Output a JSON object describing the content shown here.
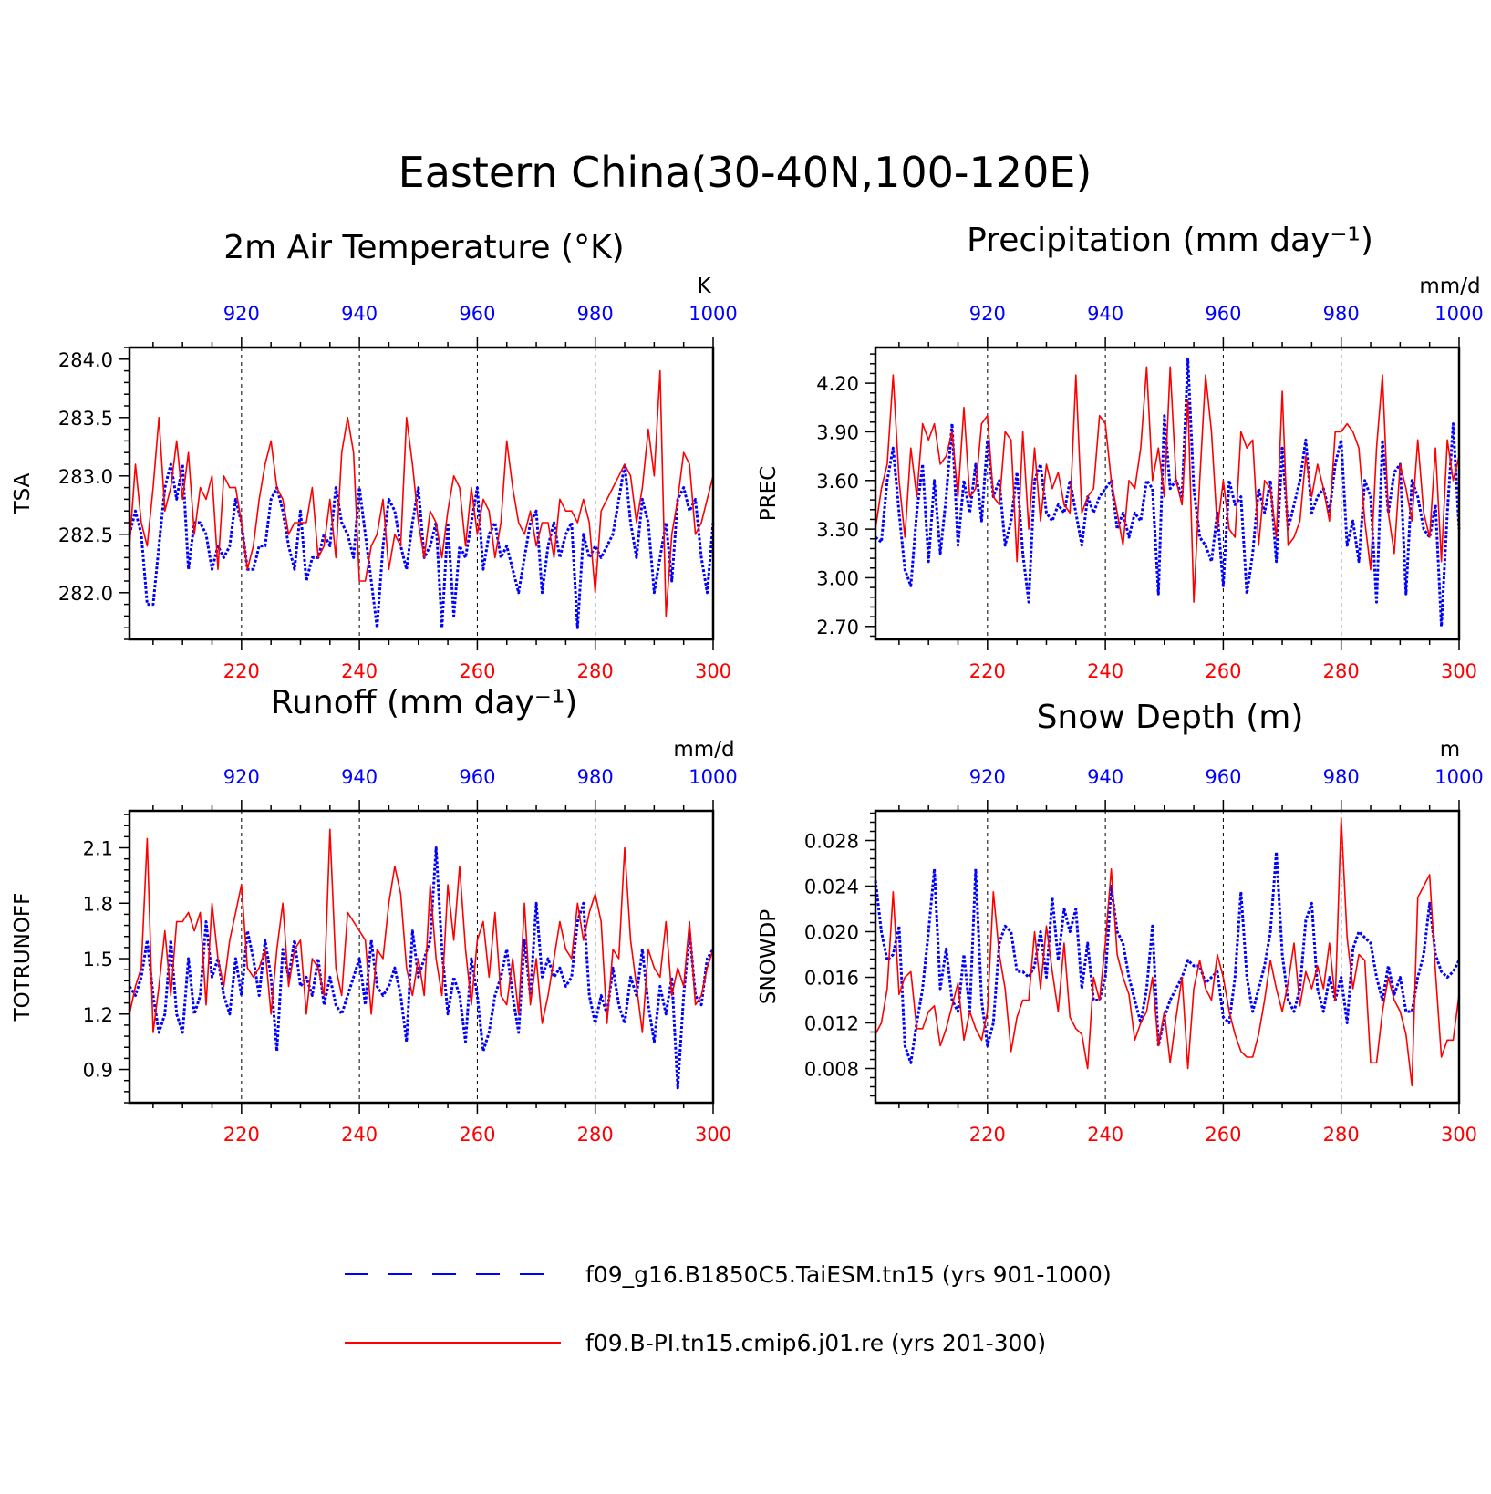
{
  "figure": {
    "title": "Eastern China(30-40N,100-120E)"
  },
  "colors": {
    "model_a": "#0000ff",
    "model_b": "#ff0000",
    "axis": "#000000"
  },
  "legend": {
    "entries": [
      {
        "label": "f09_g16.B1850C5.TaiESM.tn15 (yrs 901-1000)",
        "color": "#0000ff",
        "style": "dashed"
      },
      {
        "label": "f09.B-PI.tn15.cmip6.j01.re (yrs 201-300)",
        "color": "#ff0000",
        "style": "solid"
      }
    ]
  },
  "chart_data": [
    {
      "type": "line",
      "title": "2m Air Temperature (°K)",
      "ylabel": "TSA",
      "units": "K",
      "ylim": [
        281.6,
        284.1
      ],
      "yticks": [
        "282.0",
        "282.5",
        "283.0",
        "283.5",
        "284.0"
      ],
      "xlim_bottom": [
        201,
        300
      ],
      "xticks_bottom": [
        220,
        240,
        260,
        280,
        300
      ],
      "xlim_top": [
        901,
        1000
      ],
      "xticks_top": [
        920,
        940,
        960,
        980,
        1000
      ],
      "gridlines_x": [
        220,
        240,
        260,
        280
      ],
      "series": [
        {
          "key": "model_a",
          "color": "#0000ff",
          "style": "dashed",
          "values": [
            282.5,
            282.7,
            282.5,
            281.9,
            281.9,
            282.4,
            282.9,
            283.1,
            282.8,
            283.1,
            282.2,
            282.6,
            282.6,
            282.5,
            282.2,
            282.4,
            282.3,
            282.4,
            282.8,
            282.6,
            282.2,
            282.2,
            282.4,
            282.4,
            282.8,
            282.9,
            282.7,
            282.4,
            282.2,
            282.7,
            282.1,
            282.3,
            282.3,
            282.5,
            282.4,
            282.9,
            282.6,
            282.5,
            282.3,
            282.9,
            282.5,
            282.1,
            281.7,
            282.4,
            282.8,
            282.7,
            282.4,
            282.2,
            282.6,
            282.9,
            282.3,
            282.4,
            282.6,
            281.7,
            282.6,
            281.8,
            282.4,
            282.3,
            282.6,
            282.9,
            282.2,
            282.5,
            282.6,
            282.3,
            282.4,
            282.2,
            282.0,
            282.3,
            282.6,
            282.7,
            282.0,
            282.4,
            282.6,
            282.3,
            282.5,
            282.6,
            281.7,
            282.5,
            282.3,
            282.4,
            282.3,
            282.4,
            282.5,
            282.8,
            283.1,
            282.6,
            282.3,
            282.8,
            282.6,
            282.0,
            282.3,
            282.6,
            282.1,
            282.8,
            282.9,
            282.7,
            282.8,
            282.3,
            282.0,
            282.6
          ]
        },
        {
          "key": "model_b",
          "color": "#ff0000",
          "style": "solid",
          "values": [
            282.4,
            283.1,
            282.6,
            282.4,
            282.9,
            283.5,
            282.7,
            282.9,
            283.3,
            282.8,
            283.2,
            282.5,
            282.9,
            282.8,
            283.0,
            282.2,
            283.0,
            282.9,
            282.9,
            282.6,
            282.2,
            282.4,
            282.8,
            283.1,
            283.3,
            282.9,
            282.8,
            282.5,
            282.6,
            282.6,
            282.6,
            282.9,
            282.3,
            282.4,
            282.8,
            282.3,
            283.2,
            283.5,
            283.2,
            282.1,
            282.1,
            282.4,
            282.5,
            282.8,
            282.2,
            282.5,
            282.4,
            283.5,
            283.1,
            282.6,
            282.3,
            282.7,
            282.6,
            282.3,
            282.7,
            283.0,
            282.9,
            282.4,
            282.9,
            282.5,
            282.8,
            282.7,
            282.3,
            282.6,
            283.3,
            282.9,
            282.6,
            282.5,
            282.7,
            282.4,
            282.6,
            282.6,
            282.3,
            282.8,
            282.7,
            282.7,
            282.6,
            282.8,
            282.6,
            282.0,
            282.7,
            282.8,
            282.9,
            283.0,
            283.1,
            283.0,
            282.6,
            282.9,
            283.4,
            283.0,
            283.9,
            281.8,
            282.5,
            282.8,
            283.2,
            283.1,
            282.5,
            282.6,
            282.8,
            283.0
          ]
        }
      ]
    },
    {
      "type": "line",
      "title": "Precipitation (mm day⁻¹)",
      "ylabel": "PREC",
      "units": "mm/d",
      "ylim": [
        2.62,
        4.42
      ],
      "yticks": [
        "2.70",
        "3.00",
        "3.30",
        "3.60",
        "3.90",
        "4.20"
      ],
      "xlim_bottom": [
        201,
        300
      ],
      "xticks_bottom": [
        220,
        240,
        260,
        280,
        300
      ],
      "xlim_top": [
        901,
        1000
      ],
      "xticks_top": [
        920,
        940,
        960,
        980,
        1000
      ],
      "gridlines_x": [
        220,
        240,
        260,
        280
      ],
      "series": [
        {
          "key": "model_a",
          "color": "#0000ff",
          "style": "dashed",
          "values": [
            3.25,
            3.22,
            3.6,
            3.8,
            3.4,
            3.05,
            2.95,
            3.4,
            3.7,
            3.1,
            3.6,
            3.15,
            3.5,
            3.95,
            3.2,
            3.6,
            3.4,
            3.7,
            3.35,
            3.85,
            3.5,
            3.6,
            3.2,
            3.35,
            3.65,
            3.15,
            2.85,
            3.6,
            3.7,
            3.4,
            3.35,
            3.45,
            3.4,
            3.6,
            3.4,
            3.2,
            3.5,
            3.4,
            3.5,
            3.55,
            3.6,
            3.3,
            3.4,
            3.25,
            3.4,
            3.35,
            3.6,
            3.55,
            2.9,
            4.0,
            3.55,
            3.6,
            3.5,
            4.35,
            3.55,
            3.25,
            3.2,
            3.1,
            3.4,
            2.95,
            3.6,
            3.45,
            3.5,
            2.9,
            3.15,
            3.55,
            3.4,
            3.6,
            3.1,
            3.8,
            3.3,
            3.45,
            3.6,
            3.85,
            3.4,
            3.5,
            3.55,
            3.4,
            3.7,
            3.85,
            3.2,
            3.35,
            3.1,
            3.6,
            3.5,
            2.85,
            3.85,
            3.4,
            3.65,
            3.7,
            2.9,
            3.6,
            3.5,
            3.3,
            3.25,
            3.45,
            2.7,
            3.4,
            3.95,
            3.3
          ]
        },
        {
          "key": "model_b",
          "color": "#ff0000",
          "style": "solid",
          "values": [
            3.3,
            3.55,
            3.7,
            4.25,
            3.6,
            3.25,
            3.8,
            3.5,
            3.95,
            3.85,
            3.95,
            3.7,
            3.75,
            3.9,
            3.5,
            4.05,
            3.5,
            3.55,
            3.95,
            4.0,
            3.5,
            3.45,
            3.9,
            3.85,
            3.1,
            3.9,
            3.3,
            3.8,
            3.35,
            3.7,
            3.55,
            3.65,
            3.45,
            3.4,
            4.25,
            3.4,
            3.5,
            3.55,
            4.0,
            3.95,
            3.6,
            3.4,
            3.2,
            3.6,
            3.55,
            3.8,
            4.3,
            3.6,
            3.8,
            3.5,
            4.3,
            3.6,
            3.45,
            4.1,
            2.85,
            3.6,
            4.25,
            3.9,
            3.3,
            3.6,
            3.3,
            3.25,
            3.9,
            3.8,
            3.85,
            3.2,
            3.6,
            3.55,
            3.25,
            4.15,
            3.2,
            3.25,
            3.35,
            3.75,
            3.5,
            3.7,
            3.55,
            3.35,
            3.9,
            3.9,
            3.95,
            3.9,
            3.8,
            3.35,
            3.05,
            3.8,
            4.25,
            3.4,
            3.15,
            3.7,
            3.55,
            3.35,
            3.85,
            3.4,
            3.25,
            3.8,
            3.1,
            3.85,
            3.6,
            3.75
          ]
        }
      ]
    },
    {
      "type": "line",
      "title": "Runoff (mm day⁻¹)",
      "ylabel": "TOTRUNOFF",
      "units": "mm/d",
      "ylim": [
        0.72,
        2.3
      ],
      "yticks": [
        "0.9",
        "1.2",
        "1.5",
        "1.8",
        "2.1"
      ],
      "xlim_bottom": [
        201,
        300
      ],
      "xticks_bottom": [
        220,
        240,
        260,
        280,
        300
      ],
      "xlim_top": [
        901,
        1000
      ],
      "xticks_top": [
        920,
        940,
        960,
        980,
        1000
      ],
      "gridlines_x": [
        220,
        240,
        260,
        280
      ],
      "series": [
        {
          "key": "model_a",
          "color": "#0000ff",
          "style": "dashed",
          "values": [
            1.35,
            1.3,
            1.4,
            1.6,
            1.3,
            1.1,
            1.2,
            1.6,
            1.2,
            1.1,
            1.5,
            1.2,
            1.3,
            1.7,
            1.4,
            1.5,
            1.3,
            1.2,
            1.5,
            1.3,
            1.65,
            1.5,
            1.3,
            1.6,
            1.4,
            1.0,
            1.55,
            1.4,
            1.6,
            1.35,
            1.4,
            1.3,
            1.5,
            1.25,
            1.4,
            1.25,
            1.2,
            1.3,
            1.4,
            1.5,
            1.25,
            1.6,
            1.35,
            1.3,
            1.35,
            1.45,
            1.3,
            1.05,
            1.65,
            1.4,
            1.5,
            1.6,
            2.1,
            1.55,
            1.2,
            1.4,
            1.3,
            1.05,
            1.5,
            1.3,
            1.0,
            1.1,
            1.3,
            1.4,
            1.55,
            1.3,
            1.1,
            1.6,
            1.3,
            1.8,
            1.4,
            1.5,
            1.4,
            1.45,
            1.35,
            1.4,
            1.7,
            1.8,
            1.3,
            1.15,
            1.3,
            1.2,
            1.45,
            1.25,
            1.15,
            1.4,
            1.3,
            1.55,
            1.25,
            1.05,
            1.35,
            1.2,
            1.4,
            0.8,
            1.3,
            1.65,
            1.3,
            1.25,
            1.5,
            1.55
          ]
        },
        {
          "key": "model_b",
          "color": "#ff0000",
          "style": "solid",
          "values": [
            1.2,
            1.35,
            1.45,
            2.15,
            1.1,
            1.35,
            1.65,
            1.3,
            1.7,
            1.7,
            1.75,
            1.65,
            1.75,
            1.25,
            1.8,
            1.5,
            1.35,
            1.6,
            1.75,
            1.9,
            1.45,
            1.4,
            1.45,
            1.55,
            1.2,
            1.55,
            1.8,
            1.35,
            1.55,
            1.6,
            1.2,
            1.5,
            1.45,
            1.3,
            2.2,
            1.45,
            1.3,
            1.75,
            1.7,
            1.65,
            1.6,
            1.2,
            1.55,
            1.5,
            1.8,
            2.0,
            1.85,
            1.45,
            1.3,
            1.5,
            1.3,
            1.9,
            1.5,
            1.3,
            1.9,
            1.6,
            2.0,
            1.55,
            1.25,
            1.6,
            1.7,
            1.4,
            1.75,
            1.3,
            1.25,
            1.5,
            1.2,
            1.8,
            1.25,
            1.5,
            1.15,
            1.3,
            1.5,
            1.7,
            1.55,
            1.5,
            1.8,
            1.6,
            1.75,
            1.85,
            1.7,
            1.15,
            1.55,
            1.5,
            2.1,
            1.6,
            1.35,
            1.1,
            1.55,
            1.45,
            1.4,
            1.7,
            1.3,
            1.45,
            1.35,
            1.7,
            1.25,
            1.3,
            1.45,
            1.55
          ]
        }
      ]
    },
    {
      "type": "line",
      "title": "Snow Depth (m)",
      "ylabel": "SNOWDP",
      "units": "m",
      "ylim": [
        0.005,
        0.0306
      ],
      "yticks": [
        "0.008",
        "0.012",
        "0.016",
        "0.020",
        "0.024",
        "0.028"
      ],
      "xlim_bottom": [
        201,
        300
      ],
      "xticks_bottom": [
        220,
        240,
        260,
        280,
        300
      ],
      "xlim_top": [
        901,
        1000
      ],
      "xticks_top": [
        920,
        940,
        960,
        980,
        1000
      ],
      "gridlines_x": [
        220,
        240,
        260,
        280
      ],
      "series": [
        {
          "key": "model_a",
          "color": "#0000ff",
          "style": "dashed",
          "values": [
            0.0245,
            0.02,
            0.0175,
            0.018,
            0.0205,
            0.01,
            0.0085,
            0.012,
            0.015,
            0.02,
            0.0255,
            0.015,
            0.0185,
            0.014,
            0.013,
            0.018,
            0.013,
            0.0255,
            0.014,
            0.01,
            0.012,
            0.019,
            0.0205,
            0.02,
            0.0165,
            0.0165,
            0.016,
            0.017,
            0.02,
            0.016,
            0.023,
            0.0175,
            0.022,
            0.02,
            0.022,
            0.015,
            0.019,
            0.014,
            0.014,
            0.016,
            0.024,
            0.02,
            0.019,
            0.016,
            0.014,
            0.012,
            0.015,
            0.0205,
            0.01,
            0.0125,
            0.014,
            0.015,
            0.016,
            0.0175,
            0.017,
            0.017,
            0.0155,
            0.016,
            0.0165,
            0.0125,
            0.012,
            0.016,
            0.0235,
            0.016,
            0.013,
            0.015,
            0.017,
            0.02,
            0.027,
            0.018,
            0.014,
            0.013,
            0.015,
            0.021,
            0.0225,
            0.015,
            0.013,
            0.016,
            0.014,
            0.016,
            0.012,
            0.0185,
            0.02,
            0.0195,
            0.019,
            0.016,
            0.014,
            0.017,
            0.0145,
            0.016,
            0.013,
            0.013,
            0.016,
            0.018,
            0.0225,
            0.018,
            0.0165,
            0.016,
            0.0165,
            0.0175
          ]
        },
        {
          "key": "model_b",
          "color": "#ff0000",
          "style": "solid",
          "values": [
            0.011,
            0.012,
            0.015,
            0.0235,
            0.0145,
            0.016,
            0.0165,
            0.0115,
            0.0115,
            0.013,
            0.0135,
            0.01,
            0.0115,
            0.0135,
            0.0155,
            0.0105,
            0.013,
            0.0115,
            0.0105,
            0.013,
            0.0235,
            0.018,
            0.015,
            0.0095,
            0.0125,
            0.014,
            0.014,
            0.02,
            0.015,
            0.0205,
            0.0165,
            0.013,
            0.019,
            0.0125,
            0.0115,
            0.011,
            0.008,
            0.016,
            0.014,
            0.019,
            0.0255,
            0.018,
            0.016,
            0.0145,
            0.0105,
            0.012,
            0.013,
            0.016,
            0.01,
            0.013,
            0.0085,
            0.0125,
            0.016,
            0.008,
            0.015,
            0.0175,
            0.015,
            0.014,
            0.018,
            0.016,
            0.013,
            0.011,
            0.0095,
            0.009,
            0.009,
            0.011,
            0.014,
            0.0175,
            0.015,
            0.013,
            0.0155,
            0.019,
            0.0135,
            0.0165,
            0.015,
            0.017,
            0.015,
            0.019,
            0.014,
            0.03,
            0.0195,
            0.015,
            0.018,
            0.0175,
            0.0085,
            0.0085,
            0.013,
            0.016,
            0.014,
            0.013,
            0.011,
            0.0065,
            0.023,
            0.024,
            0.025,
            0.0165,
            0.009,
            0.0105,
            0.0105,
            0.0145
          ]
        }
      ]
    }
  ]
}
